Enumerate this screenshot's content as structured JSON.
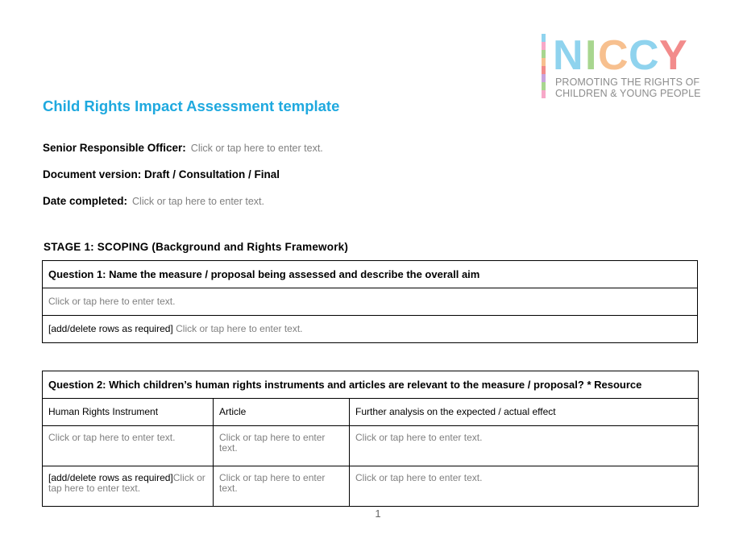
{
  "logo": {
    "name": "NICCY",
    "tagline_line1": "PROMOTING THE RIGHTS OF",
    "tagline_line2": "CHILDREN & YOUNG PEOPLE",
    "colors": [
      "#8fd3ee",
      "#f7a8c8",
      "#a8d68f",
      "#f7c08f",
      "#f28b8b",
      "#c9a3dd"
    ]
  },
  "title": "Child Rights Impact Assessment template",
  "fields": {
    "officer_label": "Senior Responsible Officer:",
    "officer_value": "Click or tap here to enter text.",
    "version_label": "Document version: Draft / Consultation / Final",
    "date_label": "Date completed:",
    "date_value": "Click or tap here to enter text."
  },
  "stage_heading": "STAGE 1: SCOPING (Background and Rights Framework)",
  "question1": {
    "heading": "Question 1: Name the measure / proposal being assessed and describe the overall aim",
    "row1": "Click or tap here to enter text.",
    "row2_prefix": "[add/delete rows as required]",
    "row2_placeholder": "Click or tap here to enter text."
  },
  "question2": {
    "heading": "Question 2: Which children’s human rights instruments and articles are relevant to the measure / proposal? * Resource",
    "columns": [
      "Human Rights Instrument",
      "Article",
      "Further analysis on the expected / actual effect"
    ],
    "row1": [
      "Click or tap here to enter text.",
      "Click or tap here to enter text.",
      "Click or tap here to enter text."
    ],
    "row2_prefix": "[add/delete rows as required]",
    "row2": [
      "Click or tap here to enter text.",
      "Click or tap here to enter text.",
      "Click or tap here to enter text."
    ]
  },
  "page_number": "1"
}
